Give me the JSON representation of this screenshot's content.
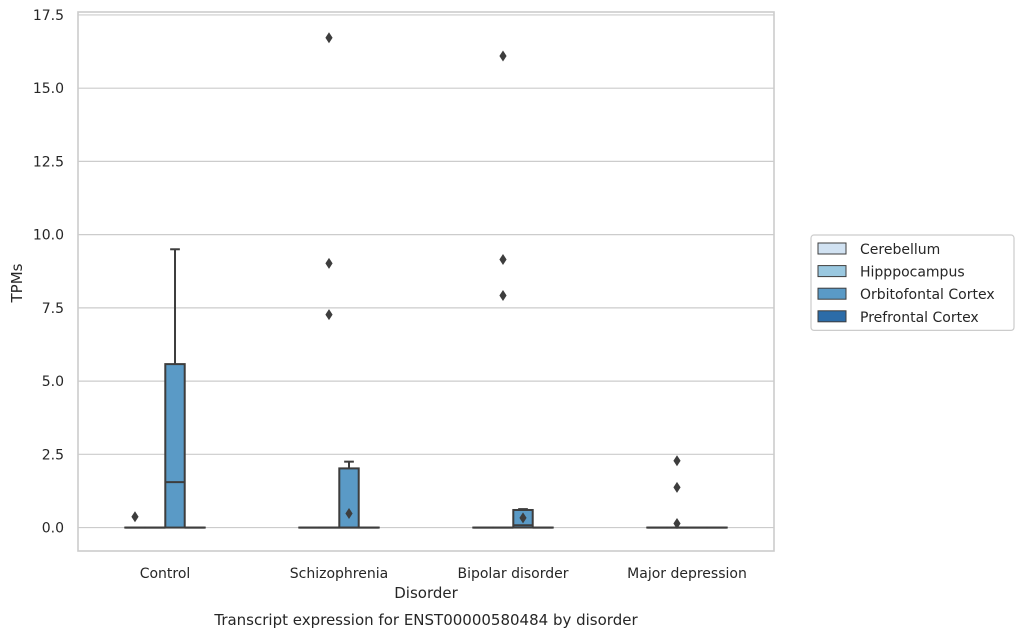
{
  "chart_data": {
    "type": "box",
    "title": "",
    "caption": "Transcript expression for ENST00000580484 by disorder",
    "xlabel": "Disorder",
    "ylabel": "TPMs",
    "ylim": [
      -0.8,
      17.6
    ],
    "yticks": [
      "0.0",
      "2.5",
      "5.0",
      "7.5",
      "10.0",
      "12.5",
      "15.0",
      "17.5"
    ],
    "ytick_values": [
      0,
      2.5,
      5,
      7.5,
      10,
      12.5,
      15,
      17.5
    ],
    "grid": "horizontal",
    "legend_position": "right",
    "categories": [
      "Control",
      "Schizophrenia",
      "Bipolar disorder",
      "Major depression"
    ],
    "series": [
      {
        "name": "Cerebellum",
        "color": "#d1e2f2",
        "boxes": [
          {
            "category": "Control",
            "q1": 0,
            "median": 0,
            "q3": 0,
            "whisker_low": 0,
            "whisker_high": 0,
            "outliers": [
              0.37
            ]
          },
          {
            "category": "Schizophrenia",
            "q1": 0,
            "median": 0,
            "q3": 0,
            "whisker_low": 0,
            "whisker_high": 0,
            "outliers": []
          },
          {
            "category": "Bipolar disorder",
            "q1": 0,
            "median": 0,
            "q3": 0,
            "whisker_low": 0,
            "whisker_high": 0,
            "outliers": []
          },
          {
            "category": "Major depression",
            "q1": 0,
            "median": 0,
            "q3": 0,
            "whisker_low": 0,
            "whisker_high": 0,
            "outliers": []
          }
        ]
      },
      {
        "name": "Hipppocampus",
        "color": "#9ac8e0",
        "boxes": [
          {
            "category": "Control",
            "q1": 0,
            "median": 0,
            "q3": 0,
            "whisker_low": 0,
            "whisker_high": 0,
            "outliers": []
          },
          {
            "category": "Schizophrenia",
            "q1": 0,
            "median": 0,
            "q3": 0,
            "whisker_low": 0,
            "whisker_high": 0,
            "outliers": [
              16.72,
              9.02,
              7.27
            ]
          },
          {
            "category": "Bipolar disorder",
            "q1": 0,
            "median": 0,
            "q3": 0,
            "whisker_low": 0,
            "whisker_high": 0,
            "outliers": [
              16.1,
              9.15,
              7.92
            ]
          },
          {
            "category": "Major depression",
            "q1": 0,
            "median": 0,
            "q3": 0,
            "whisker_low": 0,
            "whisker_high": 0,
            "outliers": [
              2.28,
              1.37,
              0.14
            ]
          }
        ]
      },
      {
        "name": "Orbitofontal Cortex",
        "color": "#5a9ac6",
        "boxes": [
          {
            "category": "Control",
            "q1": 0,
            "median": 1.55,
            "q3": 5.58,
            "whisker_low": 0,
            "whisker_high": 9.5,
            "outliers": []
          },
          {
            "category": "Schizophrenia",
            "q1": 0,
            "median": 0,
            "q3": 2.02,
            "whisker_low": 0,
            "whisker_high": 2.25,
            "outliers": [
              0.48
            ]
          },
          {
            "category": "Bipolar disorder",
            "q1": 0,
            "median": 0.08,
            "q3": 0.6,
            "whisker_low": 0,
            "whisker_high": 0.63,
            "outliers": [
              0.33
            ]
          },
          {
            "category": "Major depression",
            "q1": 0,
            "median": 0,
            "q3": 0,
            "whisker_low": 0,
            "whisker_high": 0,
            "outliers": []
          }
        ]
      },
      {
        "name": "Prefrontal Cortex",
        "color": "#2c6ca8",
        "boxes": [
          {
            "category": "Control",
            "q1": 0,
            "median": 0,
            "q3": 0,
            "whisker_low": 0,
            "whisker_high": 0,
            "outliers": []
          },
          {
            "category": "Schizophrenia",
            "q1": 0,
            "median": 0,
            "q3": 0,
            "whisker_low": 0,
            "whisker_high": 0,
            "outliers": []
          },
          {
            "category": "Bipolar disorder",
            "q1": 0,
            "median": 0,
            "q3": 0,
            "whisker_low": 0,
            "whisker_high": 0,
            "outliers": []
          },
          {
            "category": "Major depression",
            "q1": 0,
            "median": 0,
            "q3": 0,
            "whisker_low": 0,
            "whisker_high": 0,
            "outliers": []
          }
        ]
      }
    ],
    "colors": {
      "grid": "#cccccc",
      "frame": "#cccccc",
      "stroke": "#3d3d3d",
      "text": "#262626"
    }
  }
}
